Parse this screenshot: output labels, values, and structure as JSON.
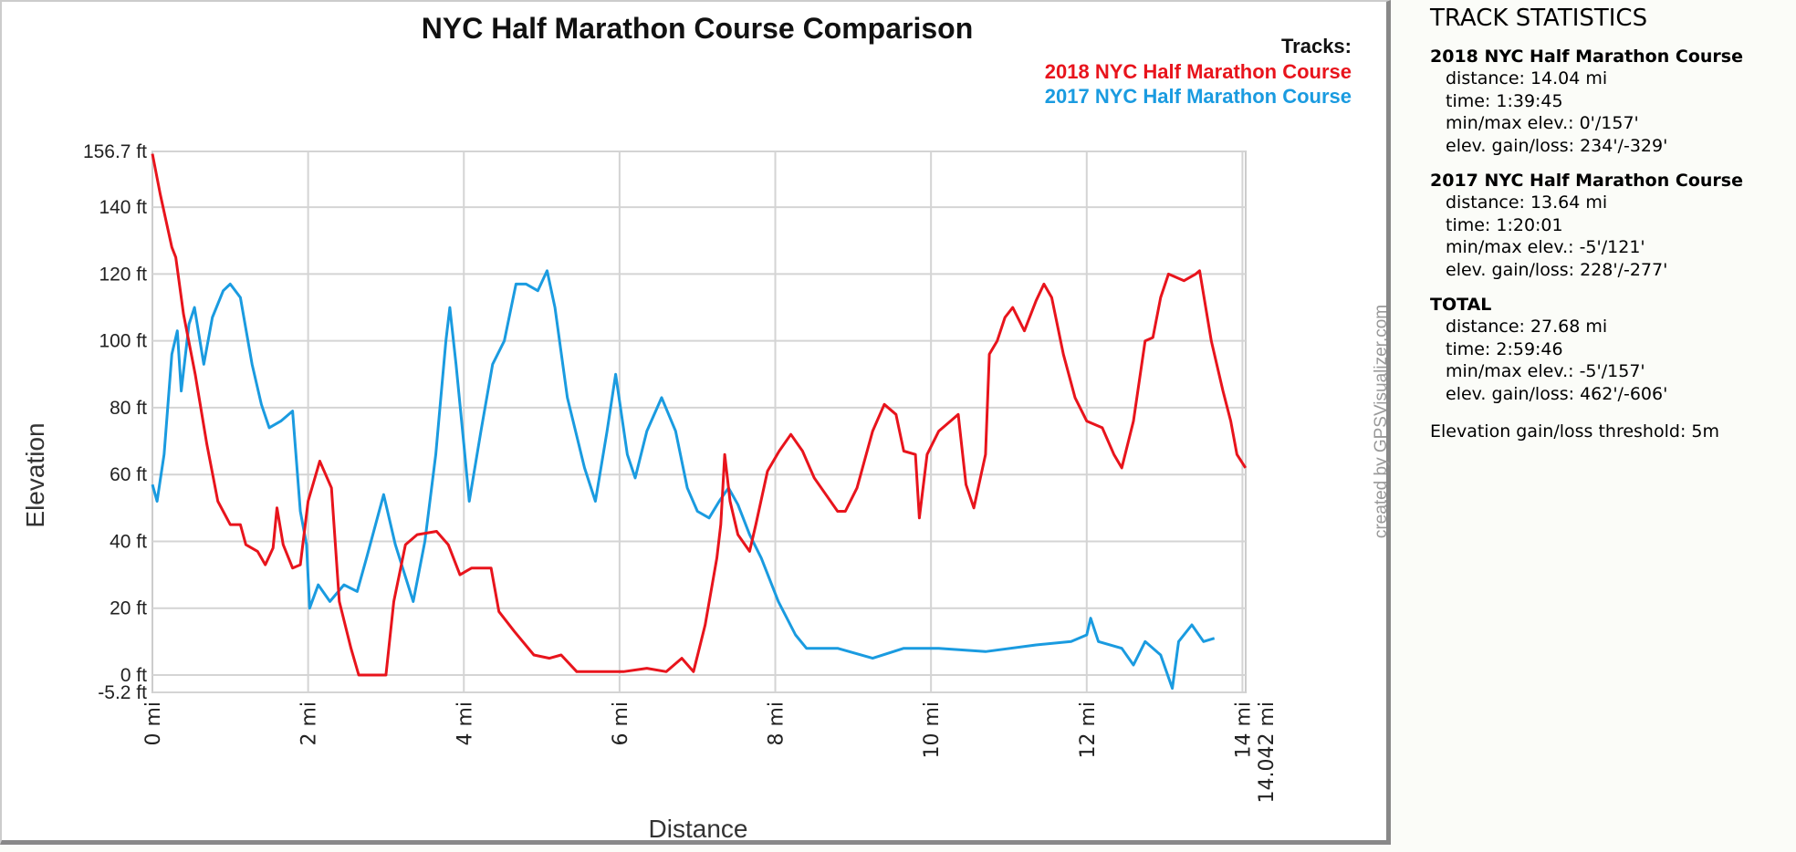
{
  "chart_data": {
    "type": "line",
    "title": "NYC Half Marathon Course Comparison",
    "xlabel": "Distance",
    "ylabel": "Elevation",
    "xlim": [
      0,
      14.042
    ],
    "ylim": [
      -5.2,
      156.7
    ],
    "grid": true,
    "legend_title": "Tracks:",
    "legend_position": "top-right",
    "credit": "created by GPSVisualizer.com",
    "y_ticks": [
      {
        "value": 156.7,
        "label": "156.7 ft"
      },
      {
        "value": 140,
        "label": "140 ft"
      },
      {
        "value": 120,
        "label": "120 ft"
      },
      {
        "value": 100,
        "label": "100 ft"
      },
      {
        "value": 80,
        "label": "80 ft"
      },
      {
        "value": 60,
        "label": "60 ft"
      },
      {
        "value": 40,
        "label": "40 ft"
      },
      {
        "value": 20,
        "label": "20 ft"
      },
      {
        "value": 0,
        "label": "0 ft"
      },
      {
        "value": -5.2,
        "label": "-5.2 ft"
      }
    ],
    "x_ticks": [
      {
        "value": 0,
        "label": "0 mi"
      },
      {
        "value": 2,
        "label": "2 mi"
      },
      {
        "value": 4,
        "label": "4 mi"
      },
      {
        "value": 6,
        "label": "6 mi"
      },
      {
        "value": 8,
        "label": "8 mi"
      },
      {
        "value": 10,
        "label": "10 mi"
      },
      {
        "value": 12,
        "label": "12 mi"
      },
      {
        "value": 14,
        "label": "14 mi"
      },
      {
        "value": 14.042,
        "label": "14.042 mi"
      }
    ],
    "series": [
      {
        "name": "2018 NYC Half Marathon Course",
        "color": "#e8141c",
        "x": [
          0,
          0.1,
          0.25,
          0.3,
          0.4,
          0.55,
          0.7,
          0.84,
          1.0,
          1.13,
          1.2,
          1.35,
          1.45,
          1.55,
          1.6,
          1.68,
          1.8,
          1.9,
          2.0,
          2.15,
          2.3,
          2.4,
          2.55,
          2.65,
          3.0,
          3.1,
          3.25,
          3.4,
          3.65,
          3.8,
          3.95,
          4.1,
          4.35,
          4.45,
          4.65,
          4.9,
          5.1,
          5.25,
          5.45,
          5.7,
          6.05,
          6.35,
          6.6,
          6.8,
          6.95,
          7.1,
          7.25,
          7.3,
          7.35,
          7.42,
          7.52,
          7.67,
          7.75,
          7.9,
          8.05,
          8.2,
          8.35,
          8.5,
          8.65,
          8.8,
          8.9,
          9.05,
          9.25,
          9.4,
          9.55,
          9.65,
          9.8,
          9.85,
          9.95,
          10.1,
          10.25,
          10.35,
          10.45,
          10.55,
          10.7,
          10.75,
          10.85,
          10.95,
          11.05,
          11.2,
          11.35,
          11.45,
          11.55,
          11.7,
          11.85,
          12.0,
          12.2,
          12.35,
          12.45,
          12.6,
          12.75,
          12.85,
          12.95,
          13.05,
          13.25,
          13.4,
          13.45,
          13.6,
          13.75,
          13.85,
          13.93,
          14.04
        ],
        "y": [
          156,
          144,
          128,
          125,
          108,
          90,
          69,
          52,
          45,
          45,
          39,
          37,
          33,
          38,
          50,
          39,
          32,
          33,
          52,
          64,
          56,
          22,
          8,
          0,
          0,
          22,
          39,
          42,
          43,
          39,
          30,
          32,
          32,
          19,
          13,
          6,
          5,
          6,
          1,
          1,
          1,
          2,
          1,
          5,
          1,
          15,
          35,
          45,
          66,
          52,
          42,
          37,
          45,
          61,
          67,
          72,
          67,
          59,
          54,
          49,
          49,
          56,
          73,
          81,
          78,
          67,
          66,
          47,
          66,
          73,
          76,
          78,
          57,
          50,
          66,
          96,
          100,
          107,
          110,
          103,
          112,
          117,
          113,
          96,
          83,
          76,
          74,
          66,
          62,
          76,
          100,
          101,
          113,
          120,
          118,
          120,
          121,
          100,
          85,
          76,
          66,
          62
        ]
      },
      {
        "name": "2017 NYC Half Marathon Course",
        "color": "#1a9be0",
        "x": [
          0,
          0.06,
          0.15,
          0.25,
          0.32,
          0.37,
          0.47,
          0.54,
          0.66,
          0.77,
          0.91,
          1.0,
          1.13,
          1.28,
          1.4,
          1.5,
          1.65,
          1.8,
          1.9,
          1.98,
          2.02,
          2.13,
          2.28,
          2.46,
          2.63,
          2.75,
          2.97,
          3.12,
          3.35,
          3.5,
          3.64,
          3.77,
          3.82,
          3.9,
          4.0,
          4.07,
          4.22,
          4.37,
          4.52,
          4.67,
          4.8,
          4.95,
          5.07,
          5.17,
          5.33,
          5.55,
          5.69,
          5.84,
          5.95,
          6.1,
          6.2,
          6.35,
          6.54,
          6.72,
          6.87,
          7.0,
          7.15,
          7.28,
          7.4,
          7.52,
          7.67,
          7.82,
          8.04,
          8.26,
          8.4,
          8.8,
          9.25,
          9.65,
          10.1,
          10.7,
          11.35,
          11.8,
          12.0,
          12.05,
          12.15,
          12.45,
          12.6,
          12.75,
          12.95,
          13.1,
          13.18,
          13.35,
          13.5,
          13.64
        ],
        "y": [
          57,
          52,
          66,
          96,
          103,
          85,
          105,
          110,
          93,
          107,
          115,
          117,
          113,
          93,
          81,
          74,
          76,
          79,
          49,
          39,
          20,
          27,
          22,
          27,
          25,
          35,
          54,
          39,
          22,
          40,
          66,
          100,
          110,
          93,
          69,
          52,
          73,
          93,
          100,
          117,
          117,
          115,
          121,
          110,
          83,
          62,
          52,
          73,
          90,
          66,
          59,
          73,
          83,
          73,
          56,
          49,
          47,
          52,
          56,
          51,
          42,
          35,
          22,
          12,
          8,
          8,
          5,
          8,
          8,
          7,
          9,
          10,
          12,
          17,
          10,
          8,
          3,
          10,
          6,
          -4,
          10,
          15,
          10,
          11
        ]
      }
    ]
  },
  "sidebar": {
    "title": "TRACK STATISTICS",
    "groups": [
      {
        "heading": "2018 NYC Half Marathon Course",
        "lines": [
          "distance: 14.04 mi",
          "time: 1:39:45",
          "min/max elev.: 0'/157'",
          "elev. gain/loss: 234'/-329'"
        ]
      },
      {
        "heading": "2017 NYC Half Marathon Course",
        "lines": [
          "distance: 13.64 mi",
          "time: 1:20:01",
          "min/max elev.: -5'/121'",
          "elev. gain/loss: 228'/-277'"
        ]
      },
      {
        "heading": "TOTAL",
        "lines": [
          "distance: 27.68 mi",
          "time: 2:59:46",
          "min/max elev.: -5'/157'",
          "elev. gain/loss: 462'/-606'"
        ]
      }
    ],
    "threshold": "Elevation gain/loss threshold: 5m"
  }
}
